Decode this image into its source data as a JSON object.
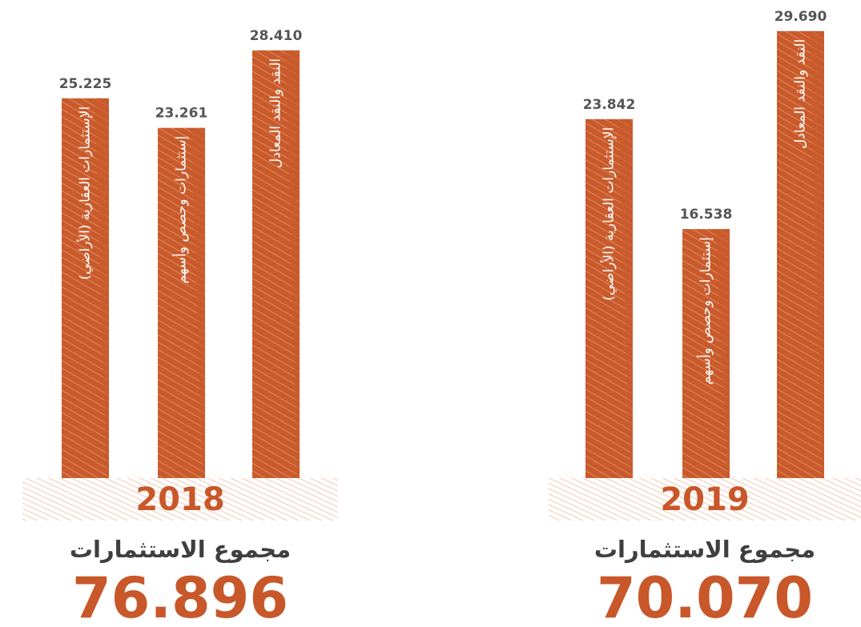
{
  "chart_data": [
    {
      "type": "bar",
      "color": "#c95a2b",
      "year": "2018",
      "categories": [
        "الإستثمارات العقارية (الأراضي)",
        "إستثمارات وحصص وأسهم",
        "النقد والنقد المعادل"
      ],
      "values": [
        25.225,
        23.261,
        28.41
      ],
      "value_labels": [
        "25.225",
        "23.261",
        "28.410"
      ],
      "total_title": "مجموع الاستثمارات",
      "total": 76.896,
      "total_label": "76.896"
    },
    {
      "type": "bar",
      "color": "#c95a2b",
      "year": "2019",
      "categories": [
        "الإستثمارات العقارية (الأراضي)",
        "إستثمارات وحصص وأسهم",
        "النقد والنقد المعادل"
      ],
      "values": [
        23.842,
        16.538,
        29.69
      ],
      "value_labels": [
        "23.842",
        "16.538",
        "29.690"
      ],
      "total_title": "مجموع الاستثمارات",
      "total": 70.07,
      "total_label": "70.070"
    }
  ]
}
